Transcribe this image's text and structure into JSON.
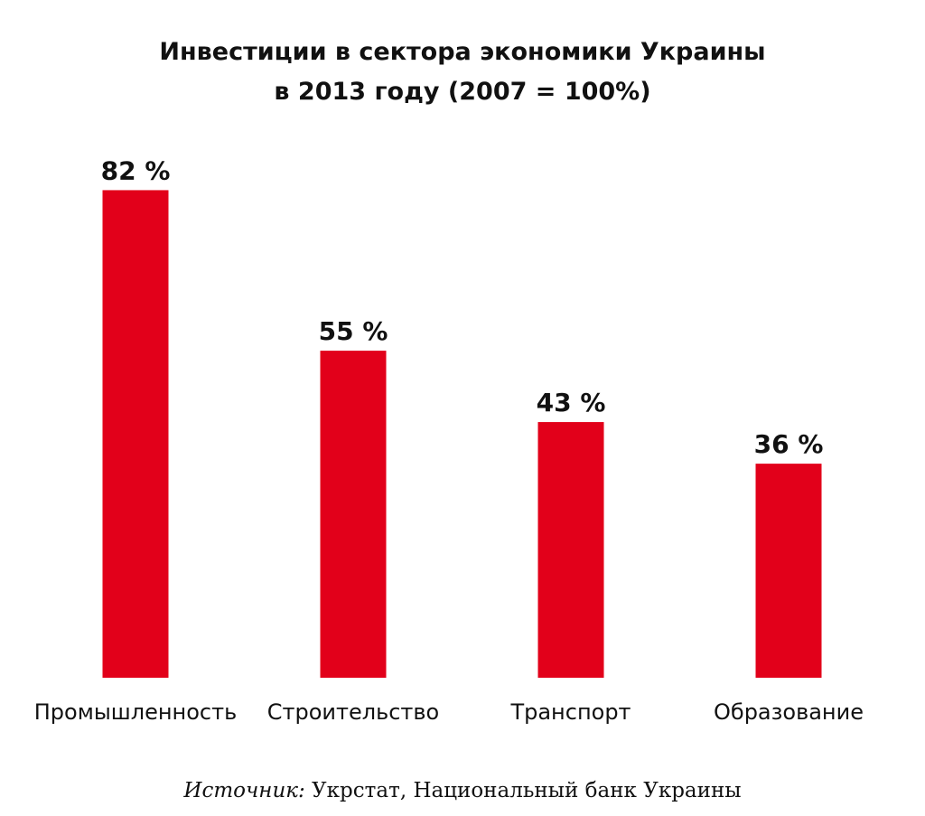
{
  "chart_data": {
    "type": "bar",
    "title_line1": "Инвестиции в сектора экономики Украины",
    "title_line2": "в 2013 году (2007 = 100%)",
    "categories": [
      "Промышленность",
      "Строительство",
      "Транспорт",
      "Образование"
    ],
    "values": [
      82,
      55,
      43,
      36
    ],
    "data_labels": [
      "82 %",
      "55 %",
      "43 %",
      "36 %"
    ],
    "ylim": [
      0,
      100
    ],
    "grid": false,
    "bar_color": "#e2001a"
  },
  "source": {
    "label": "Источник:",
    "text": " Укрстат, Национальный банк Украины"
  }
}
